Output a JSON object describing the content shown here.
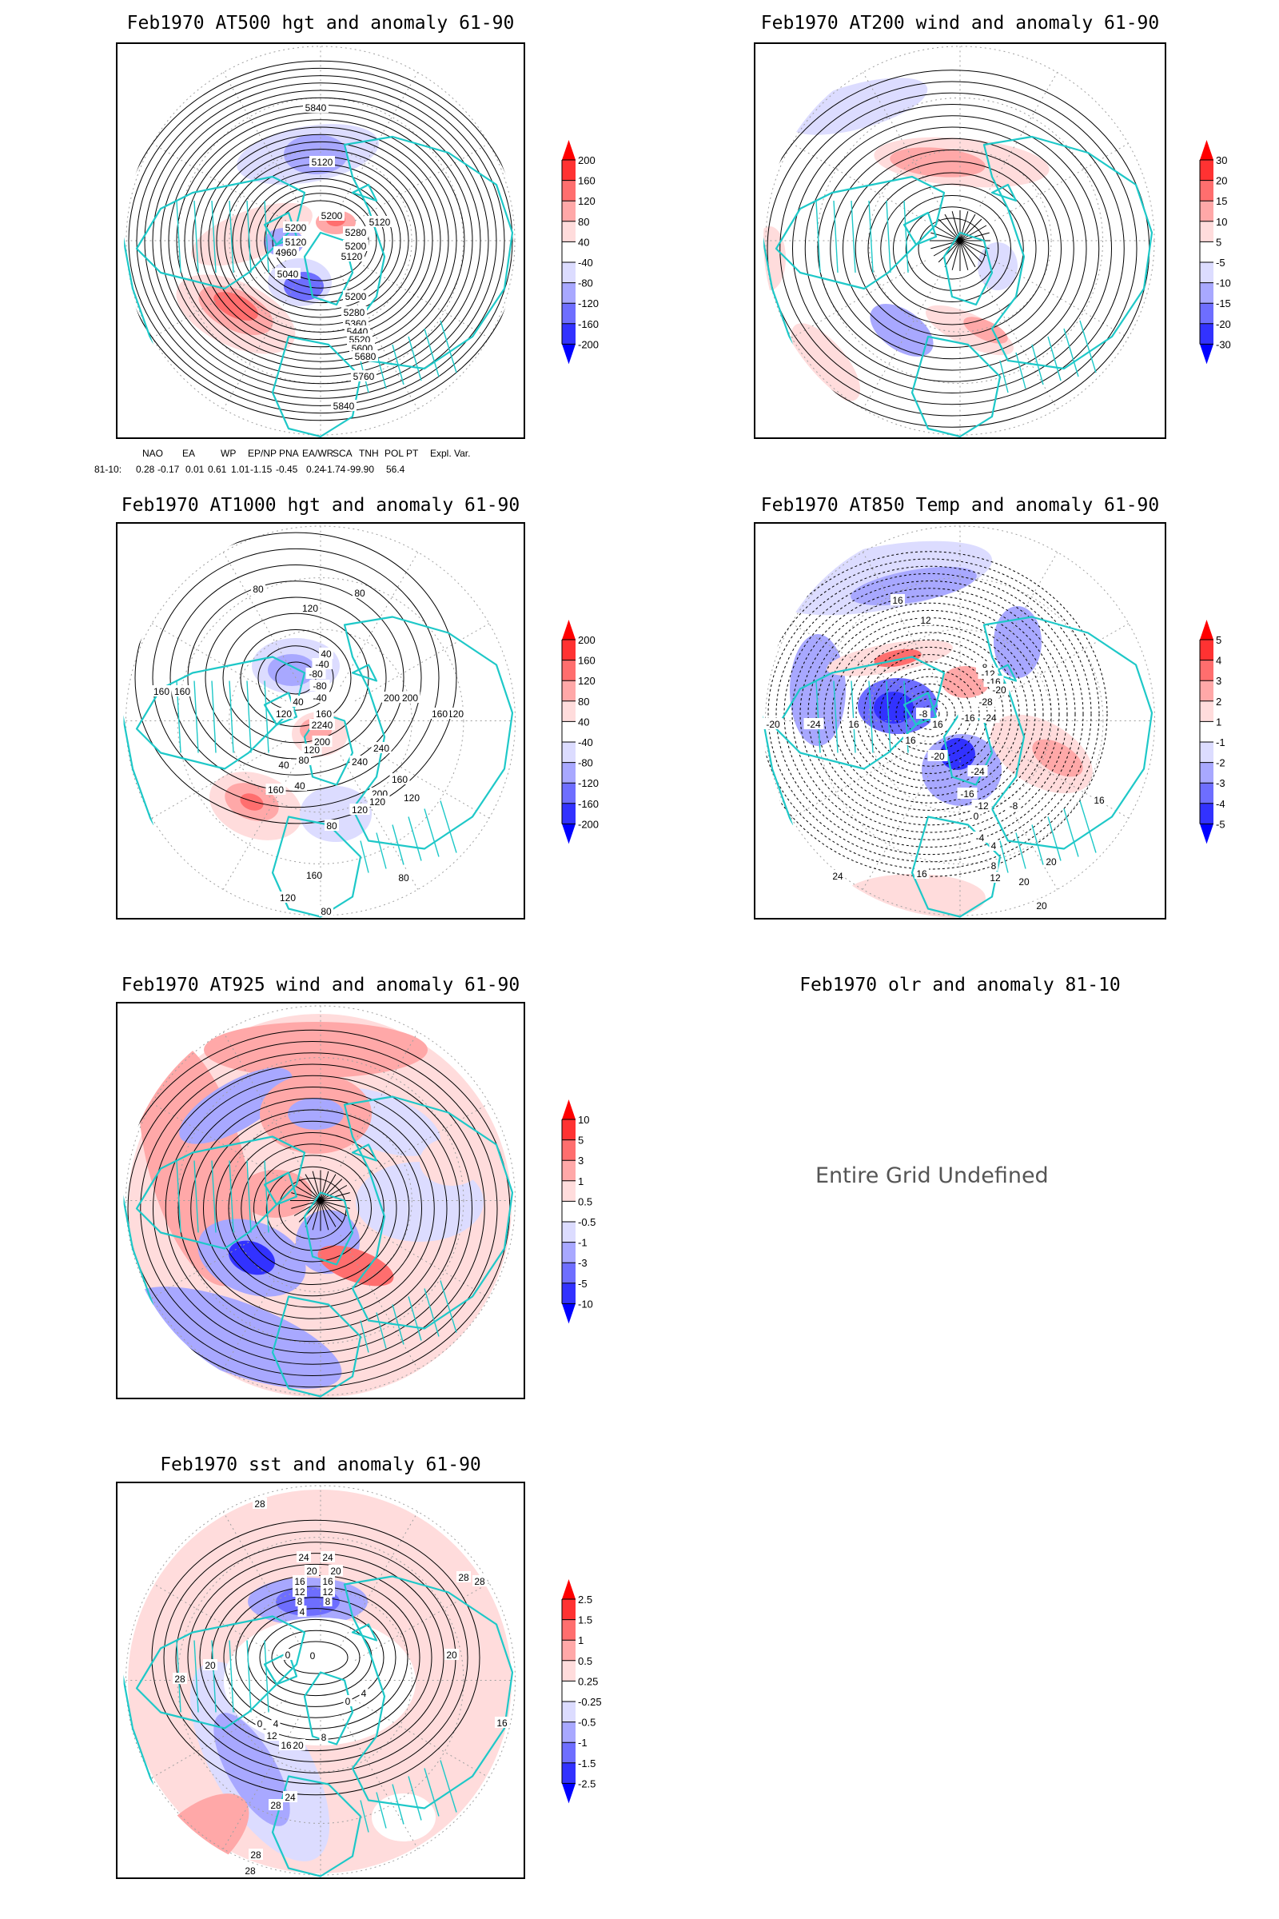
{
  "colors": {
    "tip_red": "#ff0000",
    "red_4": "#ff3232",
    "red_3": "#ff6e6e",
    "red_2": "#ffa8a8",
    "red_1": "#ffdcdc",
    "neutral": "#ffffff",
    "blue_1": "#dcdcff",
    "blue_2": "#a8a8ff",
    "blue_3": "#6e6eff",
    "blue_4": "#3232ff",
    "tip_blue": "#0000ff",
    "coast": "#1ec8c8",
    "contour": "#000000",
    "grid": "#a0a0a0",
    "undefined_text": "#555555"
  },
  "chart_data": [
    {
      "type": "heatmap",
      "title": "Feb1970 AT500 hgt and anomaly 61-90",
      "projection": "north-polar-stereographic",
      "field": "500 hPa geopotential height (contours) and anomaly (shaded)",
      "colorbar": {
        "labels": [
          "200",
          "160",
          "120",
          "80",
          "40",
          "-40",
          "-80",
          "-120",
          "-160",
          "-200"
        ],
        "placement": "right"
      },
      "contour_labels": [
        "5840",
        "5120",
        "5200",
        "5120",
        "5280",
        "5200",
        "5120",
        "5200",
        "5120",
        "4960",
        "5040",
        "5200",
        "5280",
        "5360",
        "5440",
        "5520",
        "5600",
        "5680",
        "5760",
        "5840"
      ],
      "index_table": {
        "headers": [
          "NAO",
          "EA",
          "WP",
          "EP/NP",
          "PNA",
          "EA/WR",
          "SCA",
          "TNH",
          "POL",
          "PT",
          "Expl. Var."
        ],
        "row_label": "81-10:",
        "values": [
          "0.28",
          "-0.17",
          "0.01",
          "0.61",
          "1.01",
          "-1.15",
          "-0.45",
          "0.24",
          "-1.74",
          "-99.90",
          "56.4"
        ]
      }
    },
    {
      "type": "heatmap",
      "title": "Feb1970 AT200 wind and anomaly 61-90",
      "projection": "north-polar-stereographic",
      "field": "200 hPa streamlines and wind speed anomaly (shaded)",
      "colorbar": {
        "labels": [
          "30",
          "20",
          "15",
          "10",
          "5",
          "-5",
          "-10",
          "-15",
          "-20",
          "-30"
        ],
        "placement": "right"
      },
      "contour_labels": []
    },
    {
      "type": "heatmap",
      "title": "Feb1970 AT1000 hgt and anomaly 61-90",
      "projection": "north-polar-stereographic",
      "field": "1000 hPa geopotential height (contours) and anomaly (shaded)",
      "colorbar": {
        "labels": [
          "200",
          "160",
          "120",
          "80",
          "40",
          "-40",
          "-80",
          "-120",
          "-160",
          "-200"
        ],
        "placement": "right"
      },
      "contour_labels": [
        "80",
        "80",
        "120",
        "40",
        "-40",
        "-80",
        "-80",
        "-40",
        "40",
        "160",
        "160",
        "120",
        "160",
        "120",
        "80",
        "40",
        "2240",
        "200",
        "240",
        "160",
        "40",
        "200",
        "160",
        "120",
        "120",
        "200",
        "120",
        "160",
        "200",
        "240",
        "120",
        "80",
        "160",
        "120",
        "80",
        "80"
      ]
    },
    {
      "type": "heatmap",
      "title": "Feb1970 AT850 Temp and anomaly 61-90",
      "projection": "north-polar-stereographic",
      "field": "850 hPa temperature (contours) and anomaly (shaded)",
      "colorbar": {
        "labels": [
          "5",
          "4",
          "3",
          "2",
          "1",
          "-1",
          "-2",
          "-3",
          "-4",
          "-5"
        ],
        "placement": "right"
      },
      "contour_labels": [
        "16",
        "12",
        "-8",
        "-12",
        "-16",
        "-20",
        "-28",
        "-8",
        "-16",
        "-24",
        "-20",
        "-24",
        "16",
        "16",
        "16",
        "-20",
        "-24",
        "-16",
        "-12",
        "-8",
        "0",
        "-4",
        "4",
        "8",
        "12",
        "16",
        "20",
        "20",
        "24",
        "20",
        "16"
      ]
    },
    {
      "type": "heatmap",
      "title": "Feb1970 AT925 wind and anomaly 61-90",
      "projection": "north-polar-stereographic",
      "field": "925 hPa streamlines and wind speed anomaly (shaded)",
      "colorbar": {
        "labels": [
          "10",
          "5",
          "3",
          "1",
          "0.5",
          "-0.5",
          "-1",
          "-3",
          "-5",
          "-10"
        ],
        "placement": "right"
      },
      "contour_labels": []
    },
    {
      "type": "heatmap",
      "title": "Feb1970 olr and anomaly 81-10",
      "field": "outgoing longwave radiation",
      "message": "Entire Grid Undefined"
    },
    {
      "type": "heatmap",
      "title": "Feb1970 sst and anomaly 61-90",
      "projection": "north-polar-stereographic",
      "field": "sea surface temperature (contours) and anomaly (shaded)",
      "colorbar": {
        "labels": [
          "2.5",
          "1.5",
          "1",
          "0.5",
          "0.25",
          "-0.25",
          "-0.5",
          "-1",
          "-1.5",
          "-2.5"
        ],
        "placement": "right"
      },
      "contour_labels": [
        "28",
        "24",
        "24",
        "20",
        "20",
        "16",
        "16",
        "12",
        "12",
        "8",
        "8",
        "4",
        "0",
        "0",
        "28",
        "28",
        "20",
        "28",
        "20",
        "0",
        "4",
        "0",
        "4",
        "12",
        "8",
        "16",
        "20",
        "24",
        "28",
        "28",
        "28",
        "16"
      ]
    }
  ]
}
